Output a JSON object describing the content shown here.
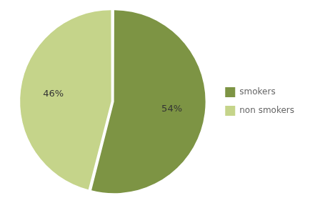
{
  "chart_data": {
    "type": "pie",
    "categories": [
      "smokers",
      "non smokers"
    ],
    "values": [
      54,
      46
    ],
    "value_labels": [
      "54%",
      "46%"
    ],
    "colors": [
      "#7d9444",
      "#c5d48a"
    ],
    "data_labels": true,
    "legend": "right"
  }
}
